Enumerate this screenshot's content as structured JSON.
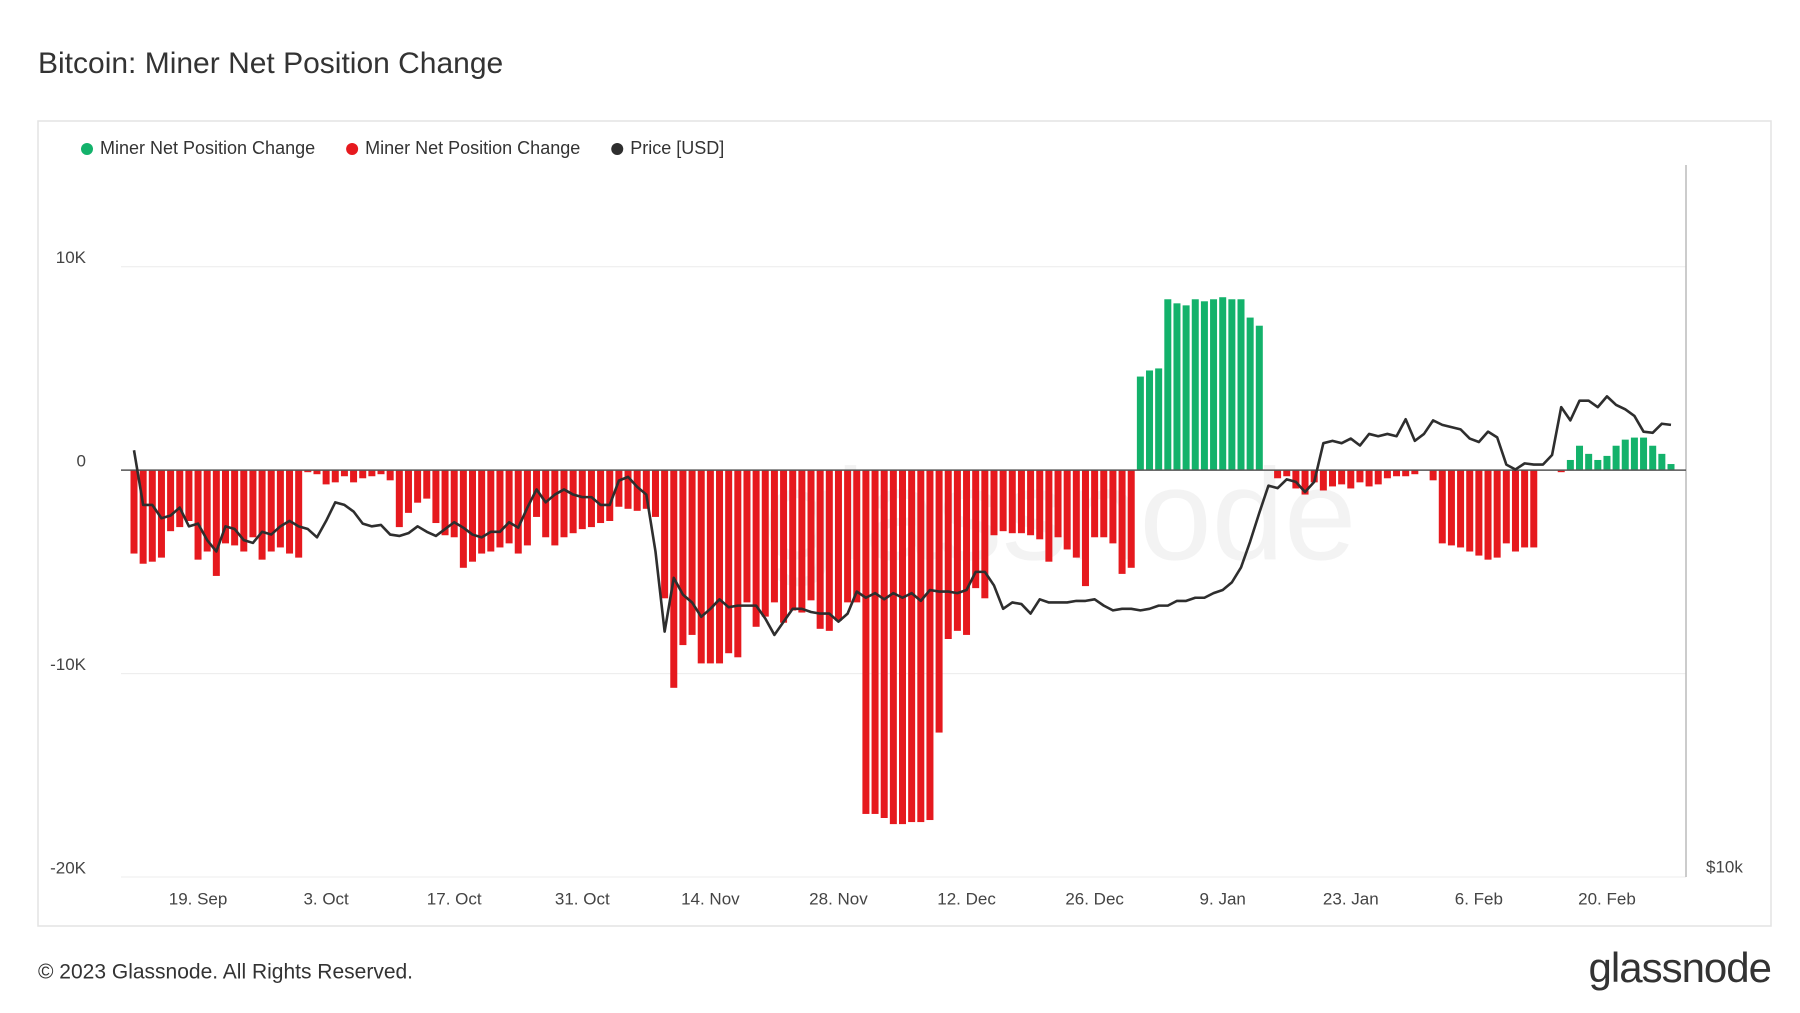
{
  "chart_data": {
    "type": "bar",
    "title": "Bitcoin: Miner Net Position Change",
    "footer": "© 2023 Glassnode. All Rights Reserved.",
    "brand": "glassnode",
    "watermark": "glassnode",
    "x": [
      "12. Sep",
      "13. Sep",
      "14. Sep",
      "15. Sep",
      "16. Sep",
      "17. Sep",
      "18. Sep",
      "19. Sep",
      "20. Sep",
      "21. Sep",
      "22. Sep",
      "23. Sep",
      "24. Sep",
      "25. Sep",
      "26. Sep",
      "27. Sep",
      "28. Sep",
      "29. Sep",
      "30. Sep",
      "1. Oct",
      "2. Oct",
      "3. Oct",
      "4. Oct",
      "5. Oct",
      "6. Oct",
      "7. Oct",
      "8. Oct",
      "9. Oct",
      "10. Oct",
      "11. Oct",
      "12. Oct",
      "13. Oct",
      "14. Oct",
      "15. Oct",
      "16. Oct",
      "17. Oct",
      "18. Oct",
      "19. Oct",
      "20. Oct",
      "21. Oct",
      "22. Oct",
      "23. Oct",
      "24. Oct",
      "25. Oct",
      "26. Oct",
      "27. Oct",
      "28. Oct",
      "29. Oct",
      "30. Oct",
      "31. Oct",
      "1. Nov",
      "2. Nov",
      "3. Nov",
      "4. Nov",
      "5. Nov",
      "6. Nov",
      "7. Nov",
      "8. Nov",
      "9. Nov",
      "10. Nov",
      "11. Nov",
      "12. Nov",
      "13. Nov",
      "14. Nov",
      "15. Nov",
      "16. Nov",
      "17. Nov",
      "18. Nov",
      "19. Nov",
      "20. Nov",
      "21. Nov",
      "22. Nov",
      "23. Nov",
      "24. Nov",
      "25. Nov",
      "26. Nov",
      "27. Nov",
      "28. Nov",
      "29. Nov",
      "30. Nov",
      "1. Dec",
      "2. Dec",
      "3. Dec",
      "4. Dec",
      "5. Dec",
      "6. Dec",
      "7. Dec",
      "8. Dec",
      "9. Dec",
      "10. Dec",
      "11. Dec",
      "12. Dec",
      "13. Dec",
      "14. Dec",
      "15. Dec",
      "16. Dec",
      "17. Dec",
      "18. Dec",
      "19. Dec",
      "20. Dec",
      "21. Dec",
      "22. Dec",
      "23. Dec",
      "24. Dec",
      "25. Dec",
      "26. Dec",
      "27. Dec",
      "28. Dec",
      "29. Dec",
      "30. Dec",
      "31. Dec",
      "1. Jan",
      "2. Jan",
      "3. Jan",
      "4. Jan",
      "5. Jan",
      "6. Jan",
      "7. Jan",
      "8. Jan",
      "9. Jan",
      "10. Jan",
      "11. Jan",
      "12. Jan",
      "13. Jan",
      "14. Jan",
      "15. Jan",
      "16. Jan",
      "17. Jan",
      "18. Jan",
      "19. Jan",
      "20. Jan",
      "21. Jan",
      "22. Jan",
      "23. Jan",
      "24. Jan",
      "25. Jan",
      "26. Jan",
      "27. Jan",
      "28. Jan",
      "29. Jan",
      "30. Jan",
      "31. Jan",
      "1. Feb",
      "2. Feb",
      "3. Feb",
      "4. Feb",
      "5. Feb",
      "6. Feb",
      "7. Feb",
      "8. Feb",
      "9. Feb",
      "10. Feb",
      "11. Feb",
      "12. Feb",
      "13. Feb",
      "14. Feb",
      "15. Feb",
      "16. Feb",
      "17. Feb",
      "18. Feb",
      "19. Feb",
      "20. Feb",
      "21. Feb",
      "22. Feb",
      "23. Feb",
      "24. Feb",
      "25. Feb",
      "26. Feb",
      "27. Feb"
    ],
    "xticks": [
      "19. Sep",
      "3. Oct",
      "17. Oct",
      "31. Oct",
      "14. Nov",
      "28. Nov",
      "12. Dec",
      "26. Dec",
      "9. Jan",
      "23. Jan",
      "6. Feb",
      "20. Feb"
    ],
    "ylim": [
      -20000,
      15000
    ],
    "yticks": [
      {
        "value": -20000,
        "label": "-20K"
      },
      {
        "value": -10000,
        "label": "-10K"
      },
      0,
      {
        "value": 10000,
        "label": "10K"
      }
    ],
    "y2lim": [
      10000,
      38400
    ],
    "y2ticks": [
      {
        "value": 10000,
        "label": "$10k"
      }
    ],
    "y2log": true,
    "grid": true,
    "legend": "top-left",
    "series": [
      {
        "name": "Miner Net Position Change",
        "color": "#13b26b",
        "values": [
          null,
          null,
          null,
          null,
          null,
          null,
          null,
          null,
          null,
          null,
          null,
          null,
          null,
          null,
          null,
          null,
          null,
          null,
          null,
          null,
          null,
          null,
          null,
          null,
          null,
          null,
          null,
          null,
          null,
          null,
          null,
          null,
          null,
          null,
          null,
          null,
          null,
          null,
          null,
          null,
          null,
          null,
          null,
          null,
          null,
          null,
          null,
          null,
          null,
          null,
          null,
          null,
          null,
          null,
          null,
          null,
          null,
          null,
          null,
          null,
          null,
          null,
          null,
          null,
          null,
          null,
          null,
          null,
          null,
          null,
          null,
          null,
          null,
          null,
          null,
          null,
          null,
          null,
          null,
          null,
          null,
          null,
          null,
          null,
          null,
          null,
          null,
          null,
          null,
          null,
          null,
          null,
          null,
          null,
          null,
          null,
          null,
          null,
          null,
          null,
          null,
          null,
          null,
          null,
          null,
          null,
          null,
          null,
          null,
          null,
          4600,
          4900,
          5000,
          8400,
          8200,
          8100,
          8400,
          8300,
          8400,
          8500,
          8400,
          8400,
          7500,
          7100,
          null,
          null,
          null,
          null,
          null,
          null,
          null,
          null,
          null,
          null,
          null,
          null,
          null,
          null,
          null,
          null,
          null,
          null,
          null,
          null,
          null,
          null,
          null,
          null,
          null,
          null,
          null,
          null,
          null,
          null,
          null,
          null,
          null,
          500,
          1200,
          800,
          500,
          700,
          1200,
          1500,
          1600,
          1600,
          1200,
          800,
          300
        ]
      },
      {
        "name": "Miner Net Position Change",
        "color": "#e6191e",
        "values": [
          -4100,
          -4600,
          -4500,
          -4300,
          -3000,
          -2800,
          -2500,
          -4400,
          -4000,
          -5200,
          -3600,
          -3700,
          -4000,
          -3300,
          -4400,
          -4000,
          -3800,
          -4100,
          -4300,
          -100,
          -200,
          -700,
          -600,
          -300,
          -600,
          -400,
          -300,
          -200,
          -500,
          -2800,
          -2100,
          -1600,
          -1400,
          -2600,
          -3200,
          -3300,
          -4800,
          -4500,
          -4100,
          -4000,
          -3800,
          -3600,
          -4100,
          -3700,
          -2300,
          -3300,
          -3700,
          -3300,
          -3100,
          -2900,
          -2800,
          -2600,
          -2500,
          -1800,
          -1900,
          -2000,
          -1900,
          -2300,
          -6300,
          -10700,
          -8600,
          -8100,
          -9500,
          -9500,
          -9500,
          -9000,
          -9200,
          -6500,
          -7700,
          -7200,
          -6500,
          -7500,
          -6900,
          -7000,
          -6400,
          -7800,
          -7900,
          -7400,
          -6500,
          -6500,
          -16900,
          -16900,
          -17100,
          -17400,
          -17400,
          -17300,
          -17300,
          -17200,
          -12900,
          -8300,
          -7900,
          -8100,
          -5800,
          -6300,
          -3200,
          -3000,
          -3100,
          -3100,
          -3200,
          -3400,
          -4500,
          -3300,
          -3900,
          -4300,
          -5700,
          -3300,
          -3300,
          -3600,
          -5100,
          -4800,
          null,
          null,
          null,
          null,
          null,
          null,
          null,
          null,
          null,
          null,
          null,
          null,
          null,
          null,
          0,
          -400,
          -300,
          -900,
          -1200,
          -600,
          -1000,
          -800,
          -700,
          -900,
          -600,
          -800,
          -700,
          -400,
          -300,
          -300,
          -200,
          0,
          -500,
          -3600,
          -3700,
          -3800,
          -4000,
          -4200,
          -4400,
          -4300,
          -3600,
          -4000,
          -3800,
          -3800,
          0,
          0,
          -100,
          null,
          null,
          null,
          null,
          null,
          null,
          null,
          null,
          null,
          null,
          null,
          null
        ]
      },
      {
        "name": "Price [USD]",
        "color": "#2e2e2e",
        "axis": "y2",
        "type": "line",
        "values": [
          22400,
          20200,
          20200,
          19700,
          19800,
          20100,
          19400,
          19500,
          18900,
          18500,
          19400,
          19300,
          18900,
          18800,
          19200,
          19100,
          19400,
          19600,
          19400,
          19300,
          19000,
          19600,
          20300,
          20200,
          19950,
          19500,
          19400,
          19450,
          19100,
          19050,
          19150,
          19400,
          19200,
          19050,
          19300,
          19550,
          19350,
          19100,
          19000,
          19200,
          19200,
          19550,
          19350,
          20100,
          20800,
          20300,
          20600,
          20800,
          20600,
          20500,
          20500,
          20200,
          20200,
          21150,
          21300,
          20900,
          20600,
          18500,
          15900,
          17600,
          17050,
          16800,
          16350,
          16600,
          16900,
          16650,
          16700,
          16700,
          16700,
          16300,
          15800,
          16200,
          16600,
          16600,
          16500,
          16450,
          16450,
          16200,
          16450,
          17150,
          16950,
          17100,
          16900,
          17100,
          16950,
          17100,
          16850,
          17200,
          17150,
          17150,
          17100,
          17200,
          17800,
          17800,
          17350,
          16600,
          16800,
          16750,
          16450,
          16900,
          16800,
          16800,
          16800,
          16850,
          16850,
          16900,
          16700,
          16550,
          16600,
          16600,
          16550,
          16600,
          16700,
          16700,
          16850,
          16850,
          16950,
          16950,
          17100,
          17200,
          17450,
          17950,
          18850,
          19900,
          20950,
          20850,
          21200,
          21100,
          20700,
          21100,
          22700,
          22800,
          22700,
          22900,
          22600,
          23100,
          23000,
          23100,
          23000,
          23750,
          22800,
          23100,
          23700,
          23500,
          23400,
          23300,
          22900,
          22750,
          23200,
          22950,
          21800,
          21600,
          21850,
          21800,
          21800,
          22200,
          24300,
          23700,
          24600,
          24600,
          24300,
          24800,
          24400,
          24200,
          23900,
          23200,
          23150,
          23550,
          23500
        ]
      }
    ]
  }
}
